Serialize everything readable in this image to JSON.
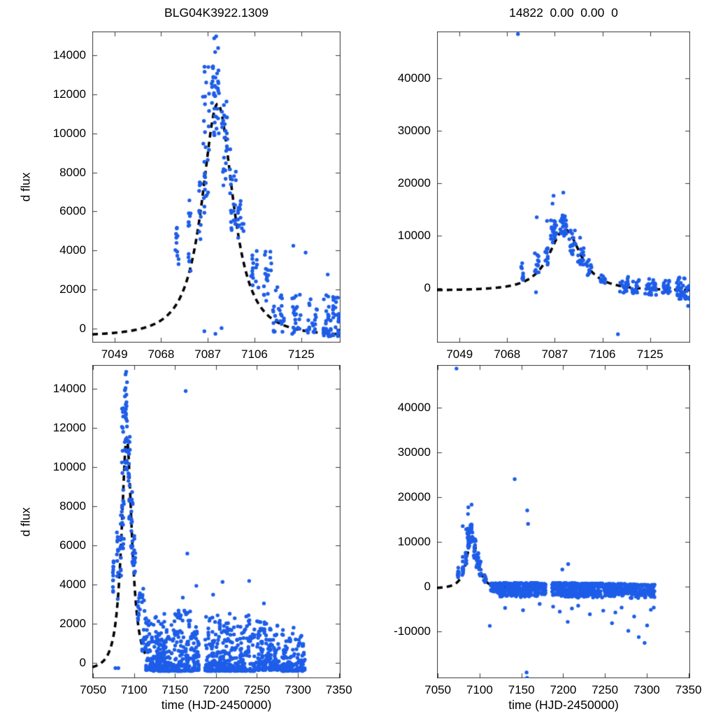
{
  "chart_data": {
    "type": "scatter",
    "description": "Four-panel microlensing light curve: difference flux vs time with dashed Paczynski model fit; top row zoomed on event, bottom row full season",
    "colors": {
      "points": "#1d5de8",
      "curve": "#000000",
      "axis": "#3a3a3a"
    },
    "panels": [
      {
        "title": "BLG04K3922.1309",
        "xlabel": "",
        "ylabel": "d flux",
        "xlim": [
          7040,
          7141
        ],
        "ylim": [
          -700,
          15200
        ],
        "xticks": [
          7049,
          7068,
          7087,
          7106,
          7125
        ],
        "yticks": [
          0,
          2000,
          4000,
          6000,
          8000,
          10000,
          12000,
          14000
        ],
        "model": {
          "t0": 7091,
          "width": 8.9,
          "power": 1.3,
          "peak": 11500,
          "base": -400,
          "trange": [
            7040,
            7141
          ]
        },
        "clusters": [
          [
            7073.8,
            7075.2,
            3300,
            5300,
            12,
            1
          ],
          [
            7079.0,
            7080.4,
            2500,
            6700,
            13,
            1
          ],
          [
            7083.1,
            7084.3,
            4400,
            7600,
            10,
            1
          ],
          [
            7085.0,
            7087.6,
            5800,
            13400,
            28,
            1
          ],
          [
            7088.5,
            7091.6,
            9800,
            13600,
            34,
            1
          ],
          [
            7092.5,
            7095.1,
            7300,
            11900,
            24,
            1
          ],
          [
            7096.0,
            7098.6,
            5000,
            9200,
            20,
            1
          ],
          [
            7099.0,
            7101.6,
            4600,
            6700,
            16,
            1
          ],
          [
            7104.6,
            7107.6,
            1900,
            4100,
            15,
            1
          ],
          [
            7109.5,
            7113.1,
            1200,
            4000,
            18,
            1
          ],
          [
            7113.5,
            7118.1,
            -150,
            2150,
            26,
            1.4
          ],
          [
            7121.3,
            7125.6,
            -250,
            2000,
            22,
            1.5
          ],
          [
            7127.0,
            7131.6,
            -200,
            1650,
            20,
            1.5
          ],
          [
            7133.8,
            7140.9,
            -380,
            1800,
            55,
            1.6
          ]
        ],
        "outliers": [
          [
            7089.6,
            14850
          ],
          [
            7090.4,
            14950
          ],
          [
            7091.2,
            14350
          ],
          [
            7090.0,
            14150
          ],
          [
            7085.6,
            -120
          ],
          [
            7090.1,
            -250
          ],
          [
            7092.6,
            40
          ],
          [
            7121.8,
            4250
          ],
          [
            7126.8,
            3900
          ],
          [
            7135.8,
            2780
          ],
          [
            7110.5,
            3950
          ]
        ]
      },
      {
        "title": "14822  0.00  0.00  0",
        "xlabel": "",
        "ylabel": "",
        "xlim": [
          7040,
          7141
        ],
        "ylim": [
          -10400,
          48900
        ],
        "xticks": [
          7049,
          7068,
          7087,
          7106,
          7125
        ],
        "yticks": [
          0,
          10000,
          20000,
          30000,
          40000
        ],
        "model": {
          "t0": 7091,
          "width": 8.9,
          "power": 1.3,
          "peak": 11200,
          "base": -500,
          "trange": [
            7040,
            7141
          ]
        },
        "clusters": [
          [
            7073.6,
            7075.3,
            1500,
            4800,
            10,
            1
          ],
          [
            7079.0,
            7080.6,
            2500,
            6900,
            12,
            1
          ],
          [
            7083.2,
            7084.4,
            4400,
            7700,
            10,
            1
          ],
          [
            7085.2,
            7087.6,
            8500,
            13000,
            20,
            1
          ],
          [
            7088.8,
            7091.6,
            9800,
            13900,
            26,
            1
          ],
          [
            7092.8,
            7095.3,
            6300,
            11000,
            18,
            1
          ],
          [
            7096.0,
            7098.6,
            4000,
            7800,
            16,
            1
          ],
          [
            7099.2,
            7101.6,
            2400,
            5700,
            13,
            1
          ],
          [
            7105.0,
            7107.6,
            700,
            2900,
            11,
            1
          ],
          [
            7113.0,
            7116.6,
            -900,
            2300,
            20,
            1.2
          ],
          [
            7117.8,
            7120.6,
            -1000,
            1700,
            16,
            1.2
          ],
          [
            7123.0,
            7127.6,
            -1400,
            1800,
            30,
            1.2
          ],
          [
            7130.0,
            7133.1,
            -1000,
            1600,
            18,
            1.2
          ],
          [
            7135.5,
            7140.9,
            -2100,
            2000,
            46,
            1.2
          ]
        ],
        "outliers": [
          [
            7072.3,
            48400
          ],
          [
            7079.8,
            13500
          ],
          [
            7079.5,
            -800
          ],
          [
            7083.9,
            12800
          ],
          [
            7086.1,
            16100
          ],
          [
            7086.5,
            17600
          ],
          [
            7090.4,
            18200
          ],
          [
            7097.1,
            9600
          ],
          [
            7112.2,
            -8800
          ],
          [
            7140.2,
            -3400
          ]
        ]
      },
      {
        "title": "",
        "xlabel": "time (HJD-2450000)",
        "ylabel": "d flux",
        "xlim": [
          7049,
          7352
        ],
        "ylim": [
          -770,
          15230
        ],
        "xticks": [
          7050,
          7100,
          7150,
          7200,
          7250,
          7300,
          7350
        ],
        "yticks": [
          0,
          2000,
          4000,
          6000,
          8000,
          10000,
          12000,
          14000
        ],
        "model": {
          "t0": 7091,
          "width": 8.9,
          "power": 1.3,
          "peak": 11500,
          "base": -400,
          "trange": [
            7049,
            7140
          ]
        },
        "clusters": [
          [
            7074.0,
            7075.3,
            3300,
            5300,
            12,
            1
          ],
          [
            7079.0,
            7080.5,
            2500,
            6700,
            12,
            1
          ],
          [
            7083.0,
            7084.3,
            4400,
            7600,
            10,
            1
          ],
          [
            7085.0,
            7087.6,
            5800,
            13400,
            26,
            1
          ],
          [
            7088.5,
            7091.6,
            9800,
            14100,
            30,
            1
          ],
          [
            7092.5,
            7095.1,
            7300,
            11900,
            20,
            1
          ],
          [
            7096.0,
            7098.6,
            5000,
            9200,
            16,
            1
          ],
          [
            7099.0,
            7101.6,
            4500,
            6700,
            13,
            1
          ],
          [
            7104.6,
            7108.0,
            1900,
            4100,
            13,
            1
          ],
          [
            7109.5,
            7113.1,
            600,
            3900,
            16,
            1
          ],
          [
            7113.5,
            7123.0,
            -350,
            2300,
            60,
            2.4
          ],
          [
            7123.5,
            7146.0,
            -400,
            2650,
            150,
            2.5
          ],
          [
            7147.0,
            7172.0,
            -400,
            2750,
            150,
            2.5
          ],
          [
            7172.5,
            7179.5,
            -350,
            2250,
            48,
            2.4
          ],
          [
            7186.5,
            7215.0,
            -400,
            2450,
            165,
            2.5
          ],
          [
            7215.5,
            7247.5,
            -400,
            2550,
            165,
            2.5
          ],
          [
            7249.0,
            7262.0,
            -350,
            2150,
            78,
            2.5
          ],
          [
            7263.5,
            7278.0,
            -350,
            2050,
            76,
            2.5
          ],
          [
            7279.5,
            7296.0,
            -400,
            1950,
            85,
            2.6
          ],
          [
            7297.0,
            7308.5,
            -400,
            1650,
            58,
            2.6
          ]
        ],
        "outliers": [
          [
            7089.6,
            14750
          ],
          [
            7090.4,
            14880
          ],
          [
            7091.4,
            14350
          ],
          [
            7077.2,
            -250
          ],
          [
            7080.8,
            -250
          ],
          [
            7163.0,
            13900
          ],
          [
            7165.0,
            5600
          ],
          [
            7159.5,
            3350
          ],
          [
            7208.0,
            4150
          ],
          [
            7240.5,
            4200
          ],
          [
            7176.0,
            3950
          ],
          [
            7196.5,
            3500
          ],
          [
            7258.5,
            3050
          ]
        ]
      },
      {
        "title": "",
        "xlabel": "time (HJD-2450000)",
        "ylabel": "",
        "xlim": [
          7049,
          7352
        ],
        "ylim": [
          -20500,
          49500
        ],
        "xticks": [
          7050,
          7100,
          7150,
          7200,
          7250,
          7300,
          7350
        ],
        "yticks": [
          -10000,
          0,
          10000,
          20000,
          30000,
          40000
        ],
        "model": {
          "t0": 7091,
          "width": 8.9,
          "power": 1.3,
          "peak": 11200,
          "base": -500,
          "trange": [
            7049,
            7140
          ]
        },
        "clusters": [
          [
            7073.6,
            7075.3,
            1500,
            4800,
            10,
            1
          ],
          [
            7079.0,
            7080.6,
            2500,
            6900,
            11,
            1
          ],
          [
            7083.2,
            7084.4,
            4400,
            7700,
            9,
            1
          ],
          [
            7085.2,
            7087.6,
            8500,
            13000,
            18,
            1
          ],
          [
            7088.8,
            7091.6,
            9800,
            13900,
            22,
            1
          ],
          [
            7092.8,
            7095.3,
            6300,
            11000,
            16,
            1
          ],
          [
            7096.0,
            7098.6,
            4000,
            7800,
            14,
            1
          ],
          [
            7099.2,
            7101.6,
            2400,
            5700,
            12,
            1
          ],
          [
            7105.0,
            7107.6,
            700,
            2900,
            10,
            1
          ],
          [
            7113.5,
            7123.0,
            700,
            -1800,
            55,
            1.6
          ],
          [
            7123.5,
            7146.0,
            800,
            -2300,
            140,
            1.6
          ],
          [
            7147.0,
            7172.0,
            800,
            -2400,
            140,
            1.6
          ],
          [
            7172.5,
            7179.5,
            600,
            -1800,
            45,
            1.6
          ],
          [
            7186.5,
            7215.0,
            800,
            -2400,
            160,
            1.6
          ],
          [
            7215.5,
            7247.5,
            700,
            -2500,
            160,
            1.6
          ],
          [
            7249.0,
            7262.0,
            600,
            -2200,
            75,
            1.6
          ],
          [
            7263.5,
            7278.0,
            600,
            -2100,
            75,
            1.6
          ],
          [
            7279.5,
            7296.0,
            500,
            -2600,
            85,
            1.6
          ],
          [
            7297.0,
            7310.0,
            400,
            -2500,
            58,
            1.6
          ]
        ],
        "outliers": [
          [
            7072.3,
            48700
          ],
          [
            7079.8,
            13500
          ],
          [
            7083.9,
            12800
          ],
          [
            7086.1,
            16200
          ],
          [
            7086.5,
            17700
          ],
          [
            7090.4,
            18300
          ],
          [
            7142.0,
            24000
          ],
          [
            7157.0,
            17000
          ],
          [
            7158.0,
            14000
          ],
          [
            7156.2,
            -19200
          ],
          [
            7156.8,
            -20400
          ],
          [
            7112.2,
            -8800
          ],
          [
            7130.5,
            -4800
          ],
          [
            7152.0,
            -5300
          ],
          [
            7171.9,
            -3900
          ],
          [
            7188.0,
            -4500
          ],
          [
            7196.0,
            -5600
          ],
          [
            7205.5,
            -7900
          ],
          [
            7210.5,
            -4900
          ],
          [
            7206.0,
            5000
          ],
          [
            7199.0,
            3800
          ],
          [
            7218.0,
            -4300
          ],
          [
            7232.0,
            -6200
          ],
          [
            7248.0,
            -5400
          ],
          [
            7258.5,
            -8200
          ],
          [
            7262.5,
            -5800
          ],
          [
            7270.0,
            -4700
          ],
          [
            7278.0,
            -9900
          ],
          [
            7285.0,
            -6700
          ],
          [
            7290.5,
            -11300
          ],
          [
            7297.5,
            -12600
          ],
          [
            7300.5,
            -8700
          ],
          [
            7305.0,
            -5200
          ],
          [
            7308.5,
            -4700
          ]
        ]
      }
    ]
  }
}
